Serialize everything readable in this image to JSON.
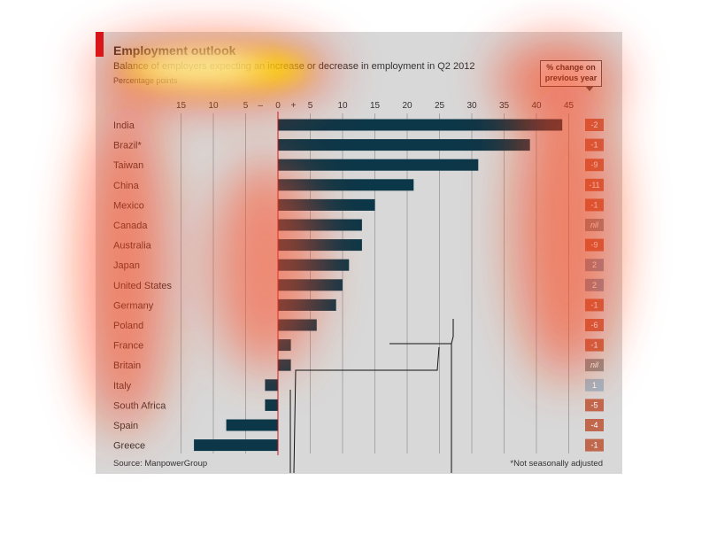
{
  "header": {
    "title": "Employment outlook",
    "subtitle": "Balance of employers expecting an increase or decrease in employment in Q2 2012",
    "unit": "Percentage points"
  },
  "change_box": {
    "line1": "% change on",
    "line2": "previous year"
  },
  "footer": {
    "source": "Source: ManpowerGroup",
    "footnote": "*Not seasonally adjusted"
  },
  "colors": {
    "bar": "#0c3748",
    "zero_line": "#d4121e",
    "grid": "#a6a6a6",
    "neg_change": "#c0684e",
    "nil_change": "#8e8e8e",
    "pos_change": "#8796aa",
    "pos_change_light": "#9fb6c6"
  },
  "chart_data": {
    "type": "bar",
    "orientation": "horizontal",
    "title": "Employment outlook",
    "subtitle": "Balance of employers expecting an increase or decrease in employment in Q2 2012",
    "unit": "Percentage points",
    "xlim": [
      -15,
      45
    ],
    "ticks": [
      "15",
      "10",
      "5",
      "–",
      "0",
      "+",
      "5",
      "10",
      "15",
      "20",
      "25",
      "30",
      "35",
      "40",
      "45"
    ],
    "categories": [
      "India",
      "Brazil*",
      "Taiwan",
      "China",
      "Mexico",
      "Canada",
      "Australia",
      "Japan",
      "United States",
      "Germany",
      "Poland",
      "France",
      "Britain",
      "Italy",
      "South Africa",
      "Spain",
      "Greece"
    ],
    "values": [
      44,
      39,
      31,
      21,
      15,
      13,
      13,
      11,
      10,
      9,
      6,
      2,
      2,
      -2,
      -2,
      -8,
      -13
    ],
    "change_label": "% change on previous year",
    "change_values": [
      "-2",
      "-1",
      "-9",
      "-11",
      "-1",
      "nil",
      "-9",
      "2",
      "2",
      "-1",
      "-6",
      "-1",
      "nil",
      "1",
      "-5",
      "-4",
      "-1"
    ],
    "grid": true
  }
}
